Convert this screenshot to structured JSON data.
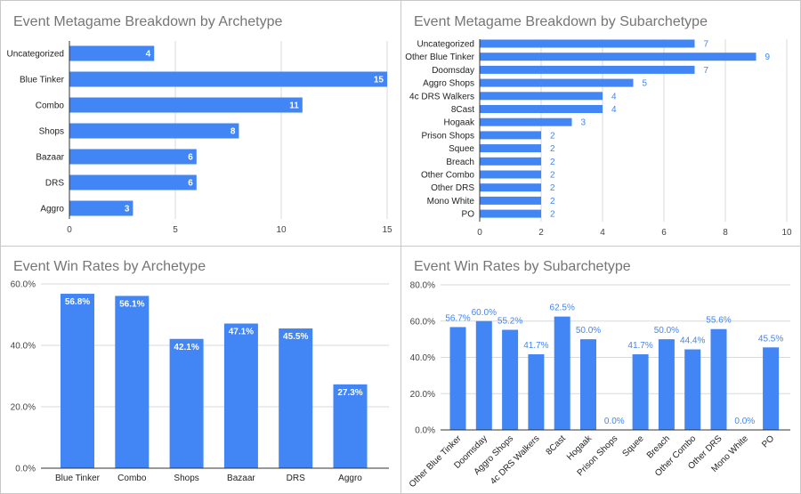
{
  "colors": {
    "bar": "#4285f4",
    "grid": "#d9d9d9",
    "title": "#757575",
    "label_out": "#4285f4",
    "label_in": "#ffffff"
  },
  "chart_data": [
    {
      "type": "bar",
      "orientation": "horizontal",
      "title": "Event Metagame Breakdown by Archetype",
      "categories": [
        "Uncategorized",
        "Blue Tinker",
        "Combo",
        "Shops",
        "Bazaar",
        "DRS",
        "Aggro"
      ],
      "values": [
        4,
        15,
        11,
        8,
        6,
        6,
        3
      ],
      "value_labels": [
        "4",
        "15",
        "11",
        "8",
        "6",
        "6",
        "3"
      ],
      "xlim": [
        0,
        15
      ],
      "xticks": [
        0,
        5,
        10,
        15
      ],
      "tick_labels": [
        "0",
        "5",
        "10",
        "15"
      ],
      "label_position": "inside",
      "grid": true,
      "legend": "none"
    },
    {
      "type": "bar",
      "orientation": "horizontal",
      "title": "Event Metagame Breakdown by Subarchetype",
      "categories": [
        "Uncategorized",
        "Other Blue Tinker",
        "Doomsday",
        "Aggro Shops",
        "4c DRS Walkers",
        "8Cast",
        "Hogaak",
        "Prison Shops",
        "Squee",
        "Breach",
        "Other Combo",
        "Other DRS",
        "Mono White",
        "PO"
      ],
      "values": [
        7,
        9,
        7,
        5,
        4,
        4,
        3,
        2,
        2,
        2,
        2,
        2,
        2,
        2
      ],
      "value_labels": [
        "7",
        "9",
        "7",
        "5",
        "4",
        "4",
        "3",
        "2",
        "2",
        "2",
        "2",
        "2",
        "2",
        "2"
      ],
      "xlim": [
        0,
        10
      ],
      "xticks": [
        0,
        2,
        4,
        6,
        8,
        10
      ],
      "tick_labels": [
        "0",
        "2",
        "4",
        "6",
        "8",
        "10"
      ],
      "label_position": "outside",
      "grid": true,
      "legend": "none"
    },
    {
      "type": "bar",
      "orientation": "vertical",
      "title": "Event Win Rates by Archetype",
      "categories": [
        "Blue Tinker",
        "Combo",
        "Shops",
        "Bazaar",
        "DRS",
        "Aggro"
      ],
      "values": [
        56.8,
        56.1,
        42.1,
        47.1,
        45.5,
        27.3
      ],
      "value_labels": [
        "56.8%",
        "56.1%",
        "42.1%",
        "47.1%",
        "45.5%",
        "27.3%"
      ],
      "ylim": [
        0,
        60
      ],
      "yticks": [
        0,
        20,
        40,
        60
      ],
      "tick_labels": [
        "0.0%",
        "20.0%",
        "40.0%",
        "60.0%"
      ],
      "label_position": "inside",
      "grid": true,
      "legend": "none"
    },
    {
      "type": "bar",
      "orientation": "vertical",
      "title": "Event Win Rates by Subarchetype",
      "categories": [
        "Other Blue Tinker",
        "Doomsday",
        "Aggro Shops",
        "4c DRS Walkers",
        "8Cast",
        "Hogaak",
        "Prison Shops",
        "Squee",
        "Breach",
        "Other Combo",
        "Other DRS",
        "Mono White",
        "PO"
      ],
      "values": [
        56.7,
        60.0,
        55.2,
        41.7,
        62.5,
        50.0,
        0.0,
        41.7,
        50.0,
        44.4,
        55.6,
        0.0,
        45.5
      ],
      "value_labels": [
        "56.7%",
        "60.0%",
        "55.2%",
        "41.7%",
        "62.5%",
        "50.0%",
        "0.0%",
        "41.7%",
        "50.0%",
        "44.4%",
        "55.6%",
        "0.0%",
        "45.5%"
      ],
      "ylim": [
        0,
        80
      ],
      "yticks": [
        0,
        20,
        40,
        60,
        80
      ],
      "tick_labels": [
        "0.0%",
        "20.0%",
        "40.0%",
        "60.0%",
        "80.0%"
      ],
      "label_position": "outside",
      "category_label_rotation": "-45deg",
      "grid": true,
      "legend": "none"
    }
  ]
}
